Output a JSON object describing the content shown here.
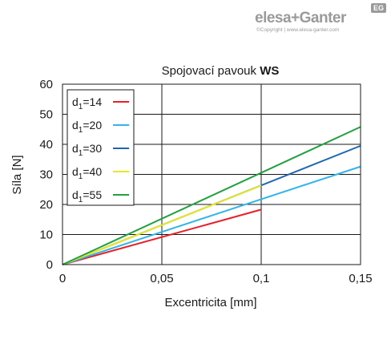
{
  "brand": {
    "name": "elesa+Ganter",
    "badge": "EG",
    "copyright": "©Copyright | www.elesa-ganter.com"
  },
  "chart_data": {
    "type": "line",
    "title_prefix": "Spojovací pavouk",
    "title_bold": "WS",
    "xlabel": "Excentricita [mm]",
    "ylabel": "Síla [N]",
    "xlim": [
      0,
      0.15
    ],
    "ylim": [
      0,
      60
    ],
    "xticks": [
      0,
      0.05,
      0.1,
      0.15
    ],
    "xtick_labels": [
      "0",
      "0,05",
      "0,1",
      "0,15"
    ],
    "yticks": [
      0,
      10,
      20,
      30,
      40,
      50,
      60
    ],
    "ytick_labels": [
      "0",
      "10",
      "20",
      "30",
      "40",
      "50",
      "60"
    ],
    "grid": true,
    "legend_position": "top-left",
    "series": [
      {
        "name": "d1=14",
        "label_main": "d",
        "label_sub": "1",
        "label_rest": "=14",
        "color": "#e8202a",
        "x": [
          0,
          0.1
        ],
        "y": [
          0,
          18.3
        ]
      },
      {
        "name": "d1=20",
        "label_main": "d",
        "label_sub": "1",
        "label_rest": "=20",
        "color": "#33b5e8",
        "x": [
          0,
          0.15
        ],
        "y": [
          0,
          32.6
        ]
      },
      {
        "name": "d1=30",
        "label_main": "d",
        "label_sub": "1",
        "label_rest": "=30",
        "color": "#1f66b0",
        "x": [
          0,
          0.15
        ],
        "y": [
          0,
          39.5
        ]
      },
      {
        "name": "d1=40",
        "label_main": "d",
        "label_sub": "1",
        "label_rest": "=40",
        "color": "#e8e820",
        "x": [
          0,
          0.1
        ],
        "y": [
          0,
          26.3
        ]
      },
      {
        "name": "d1=55",
        "label_main": "d",
        "label_sub": "1",
        "label_rest": "=55",
        "color": "#23a040",
        "x": [
          0,
          0.15
        ],
        "y": [
          0,
          45.8
        ]
      }
    ]
  }
}
